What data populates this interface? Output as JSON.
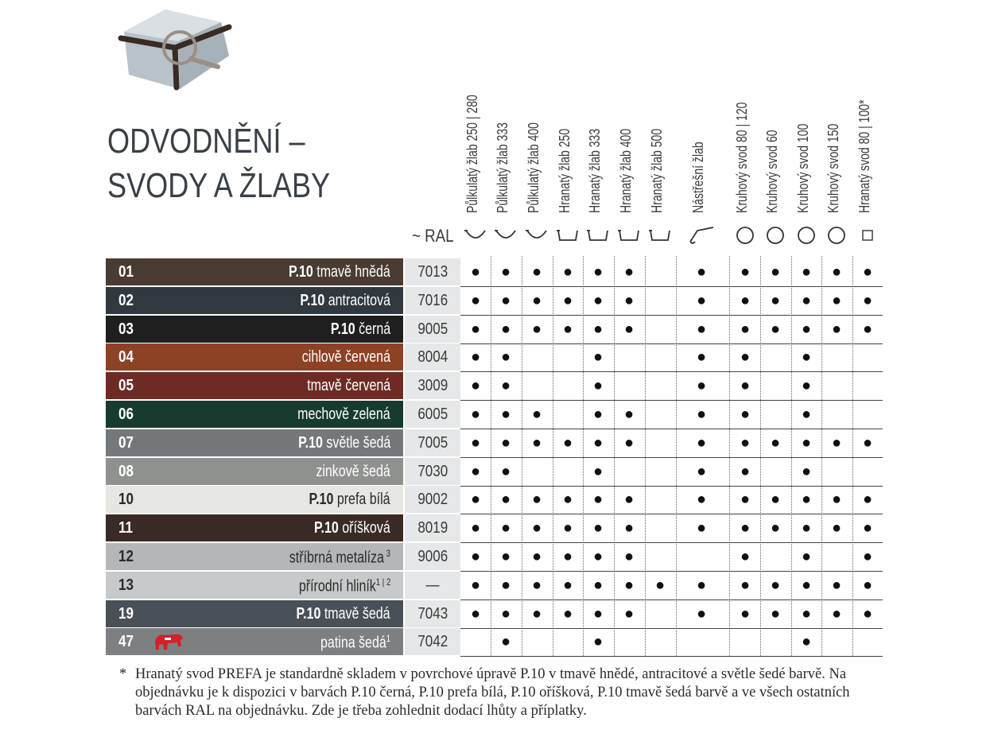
{
  "title": {
    "line1": "ODVODNĚNÍ –",
    "line2": "SVODY A ŽLABY"
  },
  "ral_header": "~ RAL",
  "columns": [
    {
      "label": "Půlkulatý žlab 250 | 280",
      "shape": "half-round"
    },
    {
      "label": "Půlkulatý žlab 333",
      "shape": "half-round"
    },
    {
      "label": "Půlkulatý žlab 400",
      "shape": "half-round"
    },
    {
      "label": "Hranatý žlab 250",
      "shape": "box"
    },
    {
      "label": "Hranatý žlab 333",
      "shape": "box"
    },
    {
      "label": "Hranatý žlab 400",
      "shape": "box"
    },
    {
      "label": "Hranatý žlab 500",
      "shape": "box"
    },
    {
      "label": "Nástřešní žlab",
      "shape": "roof"
    },
    {
      "label": "Kruhový svod 80 | 120",
      "shape": "circle"
    },
    {
      "label": "Kruhový svod  60",
      "shape": "circle"
    },
    {
      "label": "Kruhový svod  100",
      "shape": "circle"
    },
    {
      "label": "Kruhový svod  150",
      "shape": "circle"
    },
    {
      "label": "Hranatý svod 80 | 100*",
      "shape": "square"
    }
  ],
  "dot_symbol": "●",
  "rows": [
    {
      "num": "01",
      "p10": "P.10",
      "name": "tmavě hnědá",
      "sup": "",
      "ral": "7013",
      "bg": "#4a3b33",
      "fg": "#ffffff",
      "avail": [
        1,
        1,
        1,
        1,
        1,
        1,
        0,
        1,
        1,
        1,
        1,
        1,
        1
      ]
    },
    {
      "num": "02",
      "p10": "P.10",
      "name": "antracitová",
      "sup": "",
      "ral": "7016",
      "bg": "#313840",
      "fg": "#ffffff",
      "avail": [
        1,
        1,
        1,
        1,
        1,
        1,
        0,
        1,
        1,
        1,
        1,
        1,
        1
      ]
    },
    {
      "num": "03",
      "p10": "P.10",
      "name": "černá",
      "sup": "",
      "ral": "9005",
      "bg": "#1f1f1f",
      "fg": "#ffffff",
      "avail": [
        1,
        1,
        1,
        1,
        1,
        1,
        0,
        1,
        1,
        1,
        1,
        1,
        1
      ]
    },
    {
      "num": "04",
      "p10": "",
      "name": "cihlově červená",
      "sup": "",
      "ral": "8004",
      "bg": "#8d4125",
      "fg": "#ffffff",
      "avail": [
        1,
        1,
        0,
        0,
        1,
        0,
        0,
        1,
        1,
        0,
        1,
        0,
        0
      ]
    },
    {
      "num": "05",
      "p10": "",
      "name": "tmavě červená",
      "sup": "",
      "ral": "3009",
      "bg": "#6e2b26",
      "fg": "#ffffff",
      "avail": [
        1,
        1,
        0,
        0,
        1,
        0,
        0,
        1,
        1,
        0,
        1,
        0,
        0
      ]
    },
    {
      "num": "06",
      "p10": "",
      "name": "mechově zelená",
      "sup": "",
      "ral": "6005",
      "bg": "#173b2e",
      "fg": "#ffffff",
      "avail": [
        1,
        1,
        1,
        0,
        1,
        1,
        0,
        1,
        1,
        0,
        1,
        0,
        0
      ]
    },
    {
      "num": "07",
      "p10": "P.10",
      "name": "světle šedá",
      "sup": "",
      "ral": "7005",
      "bg": "#74787b",
      "fg": "#ffffff",
      "avail": [
        1,
        1,
        1,
        1,
        1,
        1,
        0,
        1,
        1,
        1,
        1,
        1,
        1
      ]
    },
    {
      "num": "08",
      "p10": "",
      "name": "zinkově šedá",
      "sup": "",
      "ral": "7030",
      "bg": "#8f918f",
      "fg": "#ffffff",
      "avail": [
        1,
        1,
        0,
        0,
        1,
        0,
        0,
        1,
        1,
        0,
        1,
        0,
        0
      ]
    },
    {
      "num": "10",
      "p10": "P.10",
      "name": "prefa bílá",
      "sup": "",
      "ral": "9002",
      "bg": "#e6e6e2",
      "fg": "#2a2a2a",
      "avail": [
        1,
        1,
        1,
        1,
        1,
        1,
        0,
        1,
        1,
        1,
        1,
        1,
        1
      ]
    },
    {
      "num": "11",
      "p10": "P.10",
      "name": "oříšková",
      "sup": "",
      "ral": "8019",
      "bg": "#3a2a26",
      "fg": "#ffffff",
      "avail": [
        1,
        1,
        1,
        1,
        1,
        1,
        0,
        1,
        1,
        1,
        1,
        1,
        1
      ]
    },
    {
      "num": "12",
      "p10": "",
      "name": "stříbrná metalíza",
      "sup": " 3",
      "ral": "9006",
      "bg": "#b4b6b8",
      "fg": "#2a2a2a",
      "avail": [
        1,
        1,
        1,
        1,
        1,
        1,
        0,
        0,
        1,
        0,
        1,
        0,
        1
      ]
    },
    {
      "num": "13",
      "p10": "",
      "name": "přírodní hliník",
      "sup": "1 | 2",
      "ral": "—",
      "bg": "#c8c9ca",
      "fg": "#2a2a2a",
      "avail": [
        1,
        1,
        1,
        1,
        1,
        1,
        1,
        1,
        1,
        1,
        1,
        1,
        1
      ]
    },
    {
      "num": "19",
      "p10": "P.10",
      "name": "tmavě šedá",
      "sup": "",
      "ral": "7043",
      "bg": "#4a5057",
      "fg": "#ffffff",
      "avail": [
        1,
        1,
        1,
        1,
        1,
        1,
        0,
        1,
        1,
        1,
        1,
        1,
        1
      ]
    },
    {
      "num": "47",
      "p10": "",
      "name": "patina šedá",
      "sup": "1",
      "ral": "7042",
      "bg": "#7d7f80",
      "fg": "#ffffff",
      "avail": [
        0,
        1,
        0,
        0,
        1,
        0,
        0,
        0,
        0,
        0,
        1,
        0,
        0
      ],
      "badge": "bull-icon"
    }
  ],
  "footnote": {
    "star": "*",
    "text": "Hranatý svod PREFA je standardně skladem v povrchové úpravě P.10 v tmavě hnědé, antracitové a světle šedé barvě. Na objednávku je k dispozici v barvách P.10 černá, P.10 prefa bílá, P.10 oříšková, P.10 tmavě šedá barvě a ve všech ostatních barvách RAL na objednávku. Zde je třeba zohlednit dodací lhůty a příplatky."
  }
}
